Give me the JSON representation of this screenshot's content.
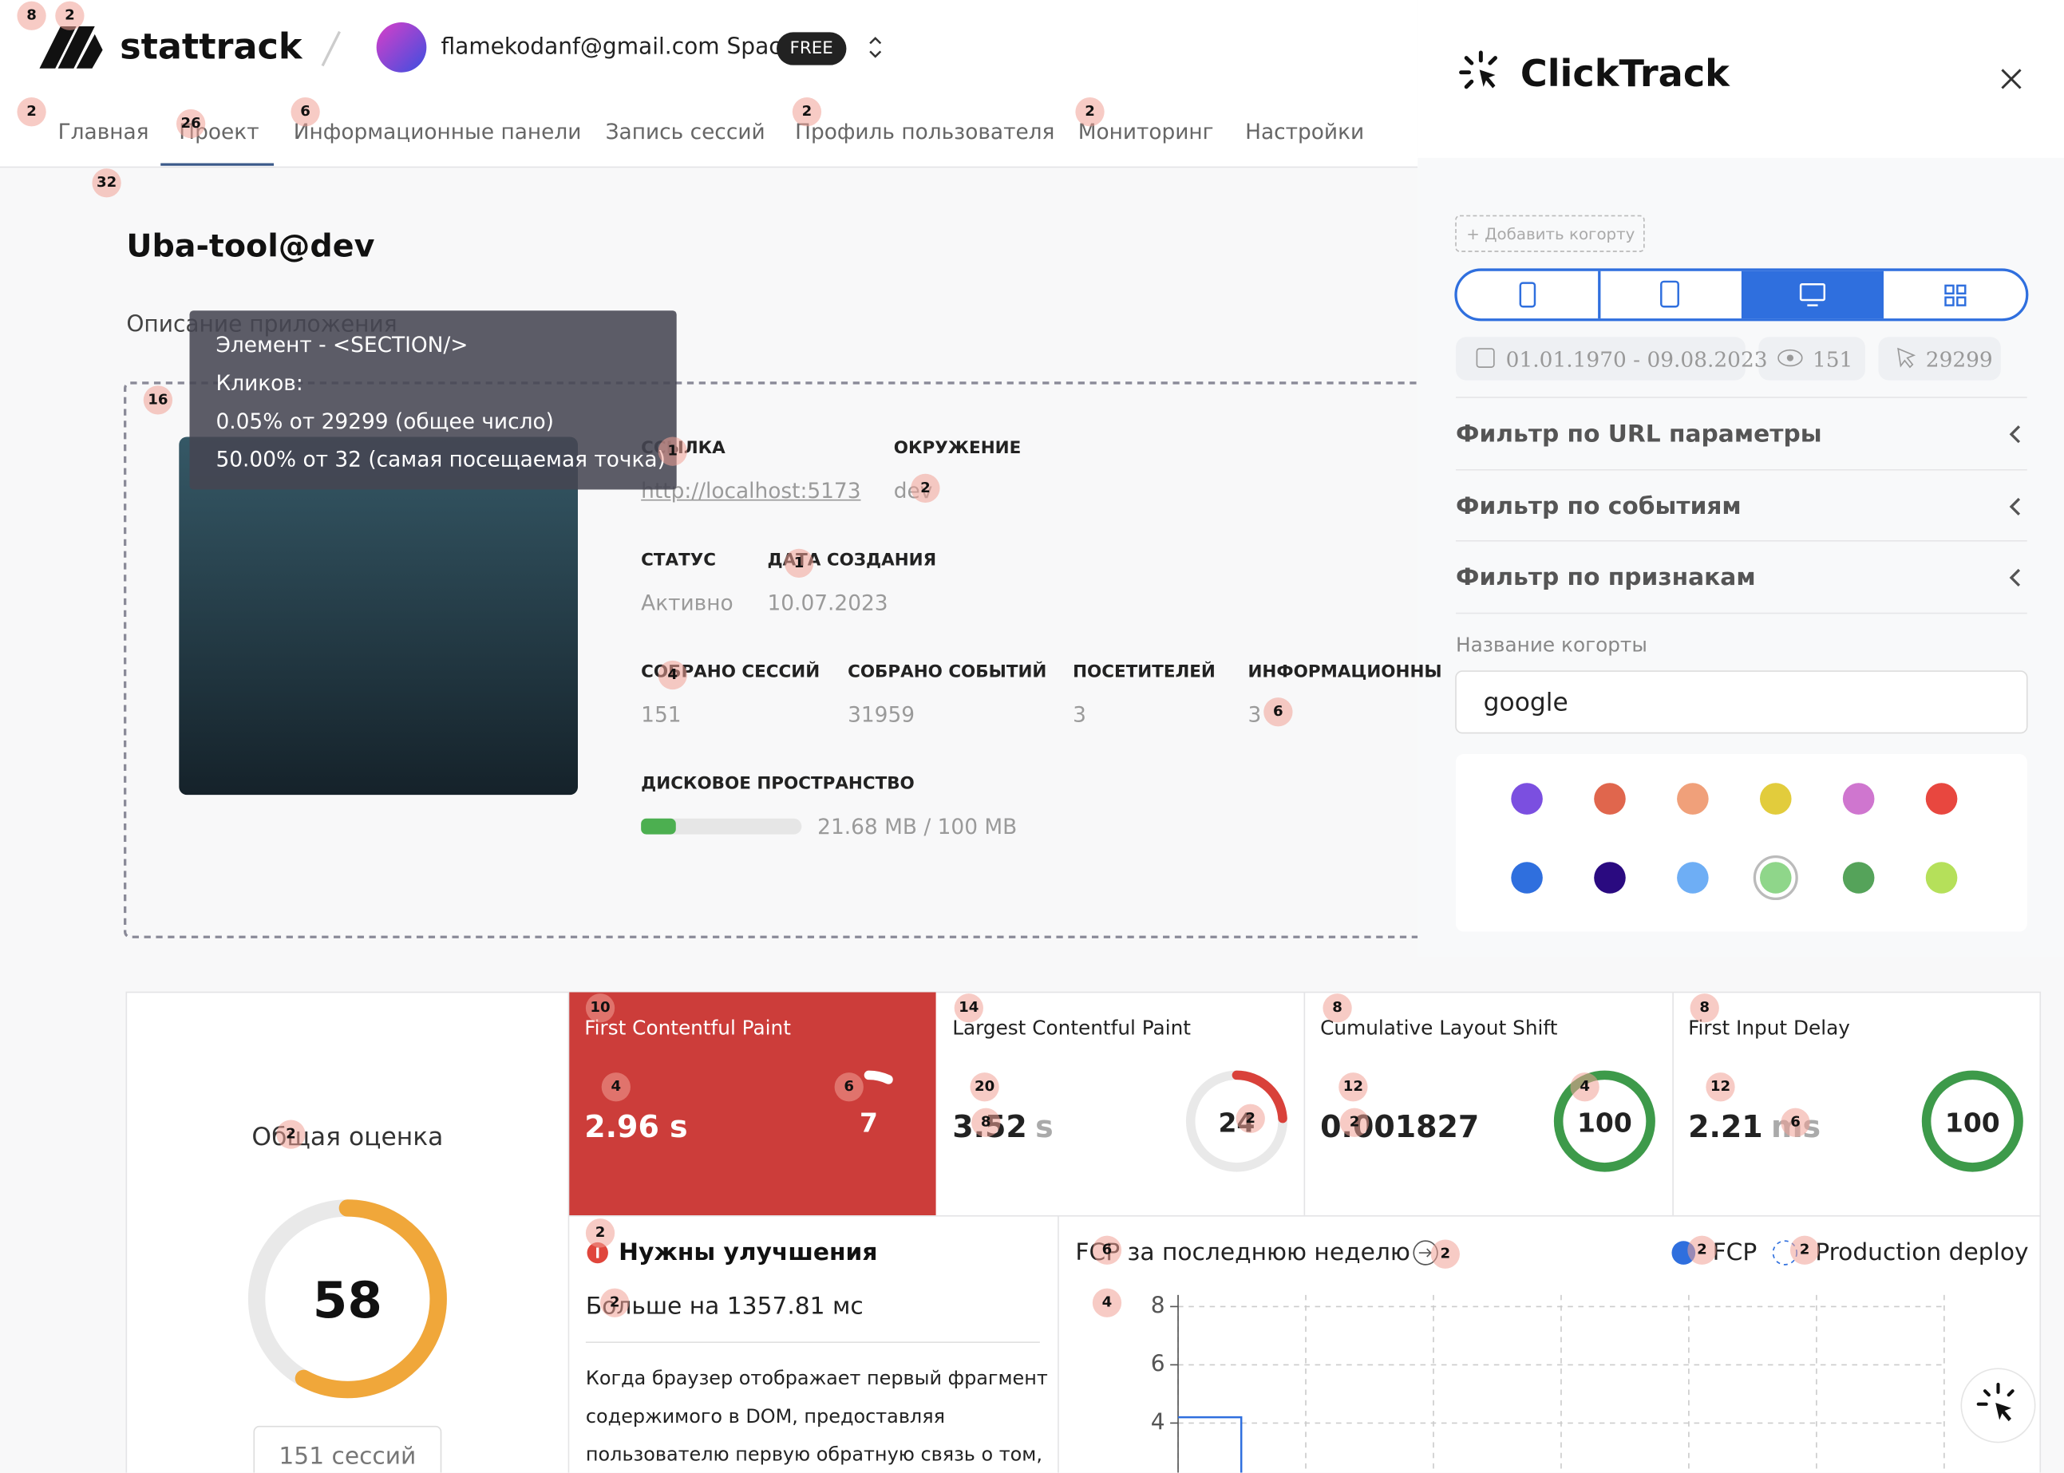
{
  "header": {
    "logo": "stattrack",
    "workspace": "flamekodanf@gmail.com Space",
    "plan": "FREE"
  },
  "nav": [
    "Главная",
    "Проект",
    "Информационные панели",
    "Запись сессий",
    "Профиль пользователя",
    "Мониторинг",
    "Настройки"
  ],
  "project": {
    "title": "Uba-tool@dev",
    "description": "Описание приложения",
    "fields": [
      {
        "label": "ССЫЛКА",
        "value": "http://localhost:5173"
      },
      {
        "label": "ОКРУЖЕНИЕ",
        "value": "dev"
      },
      {
        "label": "СТАТУС",
        "value": "Активно"
      },
      {
        "label": "ДАТА СОЗДАНИЯ",
        "value": "10.07.2023"
      },
      {
        "label": "СОБРАНО СЕССИЙ",
        "value": "151"
      },
      {
        "label": "СОБРАНО СОБЫТИЙ",
        "value": "31959"
      },
      {
        "label": "ПОСЕТИТЕЛЕЙ",
        "value": "3"
      },
      {
        "label": "ИНФОРМАЦИОННЫ",
        "value": "3"
      }
    ],
    "disk": {
      "label": "ДИСКОВОЕ ПРОСТРАНСТВО",
      "used": 21.68,
      "total": 100,
      "text": "21.68 MB / 100 MB"
    }
  },
  "tooltip": [
    "Элемент - <SECTION/>",
    "Кликов:",
    "0.05% от 29299 (общее число)",
    "50.00% от 32 (самая посещаемая точка)"
  ],
  "score": {
    "title": "Общая оценка",
    "value": 58,
    "sessions": "151 сессий"
  },
  "metrics": [
    {
      "name": "First Contentful Paint",
      "value": "2.96 s",
      "score": 7
    },
    {
      "name": "Largest Contentful Paint",
      "value": "3.52",
      "unit": "s",
      "score": 24
    },
    {
      "name": "Cumulative Layout Shift",
      "value": "0.001827",
      "score": 100
    },
    {
      "name": "First Input Delay",
      "value": "2.21",
      "unit": "ms",
      "score": 100
    }
  ],
  "advice": {
    "title": "Нужны улучшения",
    "subtitle": "Больше на 1357.81 мс",
    "lines": [
      "Когда браузер отображает первый фрагмент",
      "содержимого в DOM, предоставляя",
      "пользователю первую обратную связь о том,"
    ]
  },
  "chart_data": {
    "type": "line",
    "title": "FCP за последнюю неделю",
    "series": [
      {
        "name": "FCP",
        "color": "#2f6fde",
        "values": [
          4.2
        ]
      }
    ],
    "annotations": [
      "Production deploy"
    ],
    "ylim": [
      2.3,
      8.4
    ],
    "yticks": [
      4,
      6,
      8
    ],
    "grid": true
  },
  "clicktrack": {
    "title": "ClickTrack",
    "add_cohort": "+ Добавить когорту",
    "date_range": "01.01.1970 - 09.08.2023",
    "views": "151",
    "clicks": "29299",
    "filters": [
      "Фильтр по URL параметры",
      "Фильтр по событиям",
      "Фильтр по признакам"
    ],
    "cohort_label": "Название когорты",
    "cohort_name": "google",
    "colors": [
      "#7b4fe0",
      "#e0664d",
      "#f0a07a",
      "#e2cc3c",
      "#cf76cf",
      "#e8473f",
      "#2f6fde",
      "#2a0a80",
      "#6eaef5",
      "#8fd68a",
      "#55a35a",
      "#b5e05a"
    ],
    "selected_color": 9
  },
  "heatmap_badges": [
    8,
    2,
    2,
    26,
    6,
    2,
    2,
    32,
    16,
    1,
    2,
    1,
    4,
    6,
    10,
    14,
    8,
    8,
    4,
    6,
    20,
    12,
    4,
    12,
    8,
    2,
    2,
    6,
    2,
    2,
    2,
    6,
    2,
    2,
    2,
    4
  ]
}
